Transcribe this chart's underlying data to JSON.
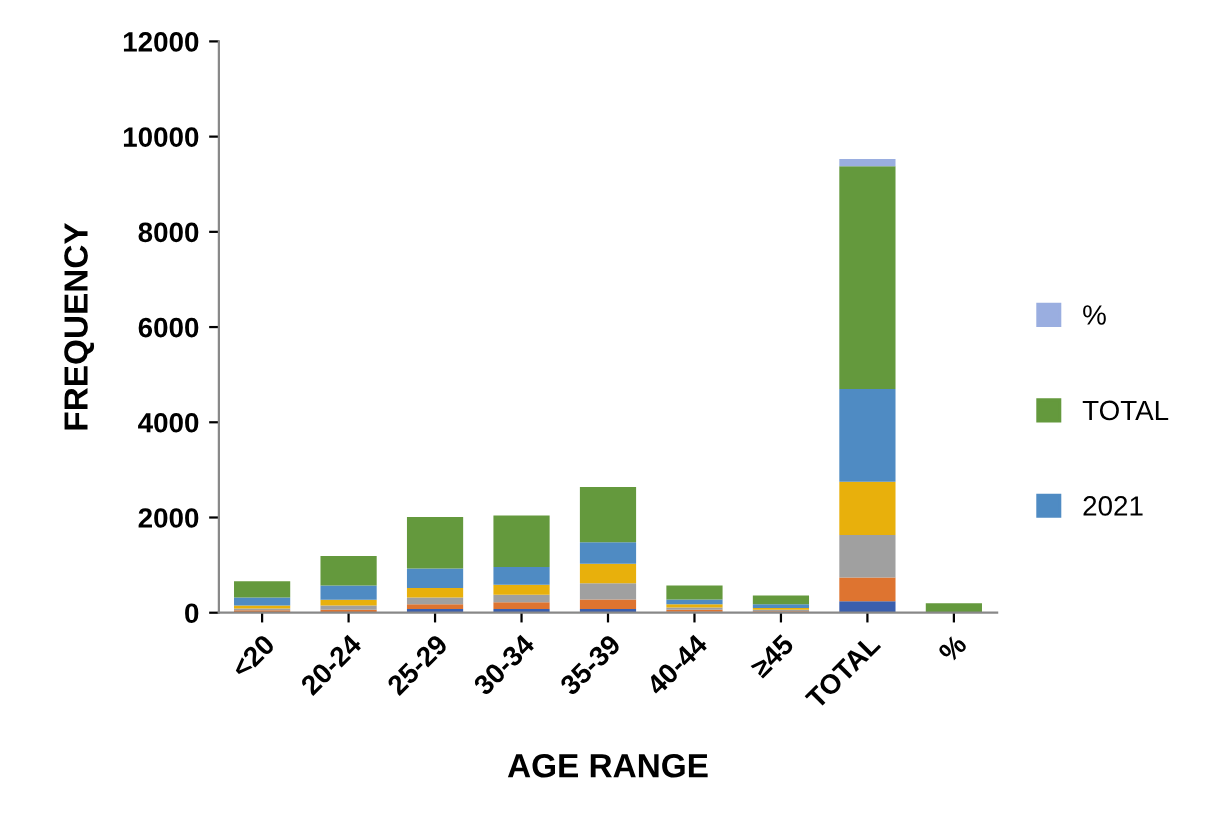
{
  "chart_data": {
    "type": "bar",
    "stacked": true,
    "xlabel": "AGE RANGE",
    "ylabel": "FREQUENCY",
    "categories": [
      "<20",
      "20-24",
      "25-29",
      "30-34",
      "35-39",
      "40-44",
      "≥45",
      "TOTAL",
      "%"
    ],
    "ylim": [
      0,
      12000
    ],
    "yticks": [
      0,
      2000,
      4000,
      6000,
      8000,
      10000,
      12000
    ],
    "grid": false,
    "legend": "right",
    "series": [
      {
        "color": "#3a5fae",
        "values": [
          null,
          null,
          80,
          80,
          80,
          20,
          10,
          240,
          null
        ]
      },
      {
        "color": "#de7430",
        "values": [
          50,
          60,
          100,
          140,
          200,
          40,
          20,
          500,
          null
        ]
      },
      {
        "color": "#a0a0a0",
        "values": [
          40,
          90,
          140,
          160,
          340,
          50,
          30,
          890,
          null
        ]
      },
      {
        "color": "#e8b00c",
        "values": [
          60,
          120,
          200,
          210,
          410,
          70,
          40,
          1120,
          null
        ]
      },
      {
        "name": "2021",
        "color": "#4f8bc3",
        "values": [
          170,
          300,
          410,
          370,
          450,
          100,
          80,
          1950,
          null
        ]
      },
      {
        "name": "TOTAL",
        "color": "#64993d",
        "values": [
          340,
          620,
          1080,
          1080,
          1160,
          290,
          180,
          4680,
          200
        ]
      },
      {
        "name": "%",
        "color": "#9aaee0",
        "values": [
          null,
          null,
          null,
          null,
          null,
          null,
          null,
          150,
          null
        ]
      }
    ]
  }
}
